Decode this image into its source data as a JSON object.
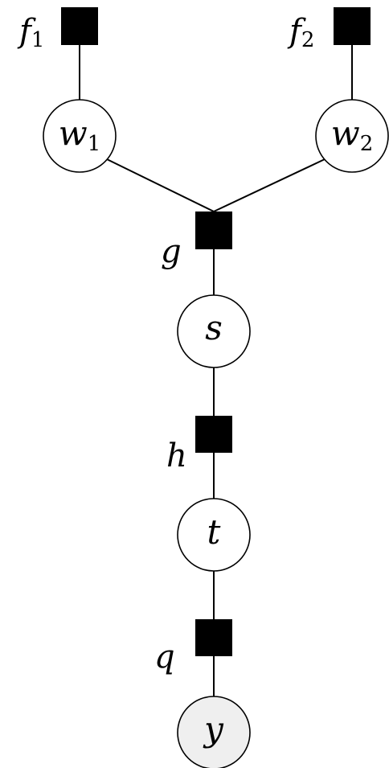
{
  "diagram": {
    "variable_nodes": [
      {
        "id": "w1",
        "symbol": "w",
        "subscript": "1",
        "observed": false
      },
      {
        "id": "w2",
        "symbol": "w",
        "subscript": "2",
        "observed": false
      },
      {
        "id": "s",
        "symbol": "s",
        "subscript": "",
        "observed": false
      },
      {
        "id": "t",
        "symbol": "t",
        "subscript": "",
        "observed": false
      },
      {
        "id": "y",
        "symbol": "y",
        "subscript": "",
        "observed": true
      }
    ],
    "factor_nodes": [
      {
        "id": "f1",
        "symbol": "f",
        "subscript": "1"
      },
      {
        "id": "f2",
        "symbol": "f",
        "subscript": "2"
      },
      {
        "id": "g",
        "symbol": "g",
        "subscript": ""
      },
      {
        "id": "h",
        "symbol": "h",
        "subscript": ""
      },
      {
        "id": "q",
        "symbol": "q",
        "subscript": ""
      }
    ],
    "edges": [
      [
        "f1",
        "w1"
      ],
      [
        "f2",
        "w2"
      ],
      [
        "w1",
        "g"
      ],
      [
        "w2",
        "g"
      ],
      [
        "g",
        "s"
      ],
      [
        "s",
        "h"
      ],
      [
        "h",
        "t"
      ],
      [
        "t",
        "q"
      ],
      [
        "q",
        "y"
      ]
    ],
    "colors": {
      "stroke": "#000000",
      "factor_fill": "#000000",
      "variable_fill": "#ffffff",
      "observed_fill": "#efefef"
    }
  }
}
